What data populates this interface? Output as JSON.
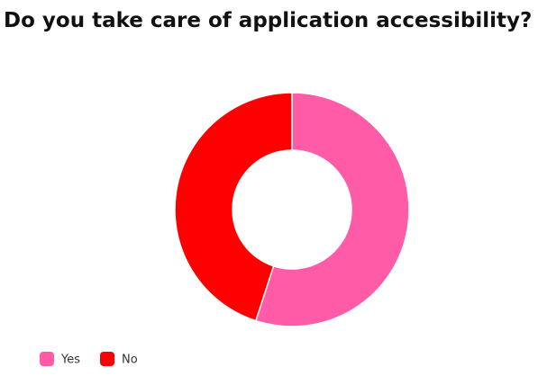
{
  "chart_data": {
    "type": "donut",
    "title": "Do you take care of application accessibility?",
    "categories": [
      "Yes",
      "No"
    ],
    "values": [
      55,
      45
    ],
    "colors": [
      "#ff5ba7",
      "#ff0000"
    ],
    "legend": "bottom-left"
  }
}
